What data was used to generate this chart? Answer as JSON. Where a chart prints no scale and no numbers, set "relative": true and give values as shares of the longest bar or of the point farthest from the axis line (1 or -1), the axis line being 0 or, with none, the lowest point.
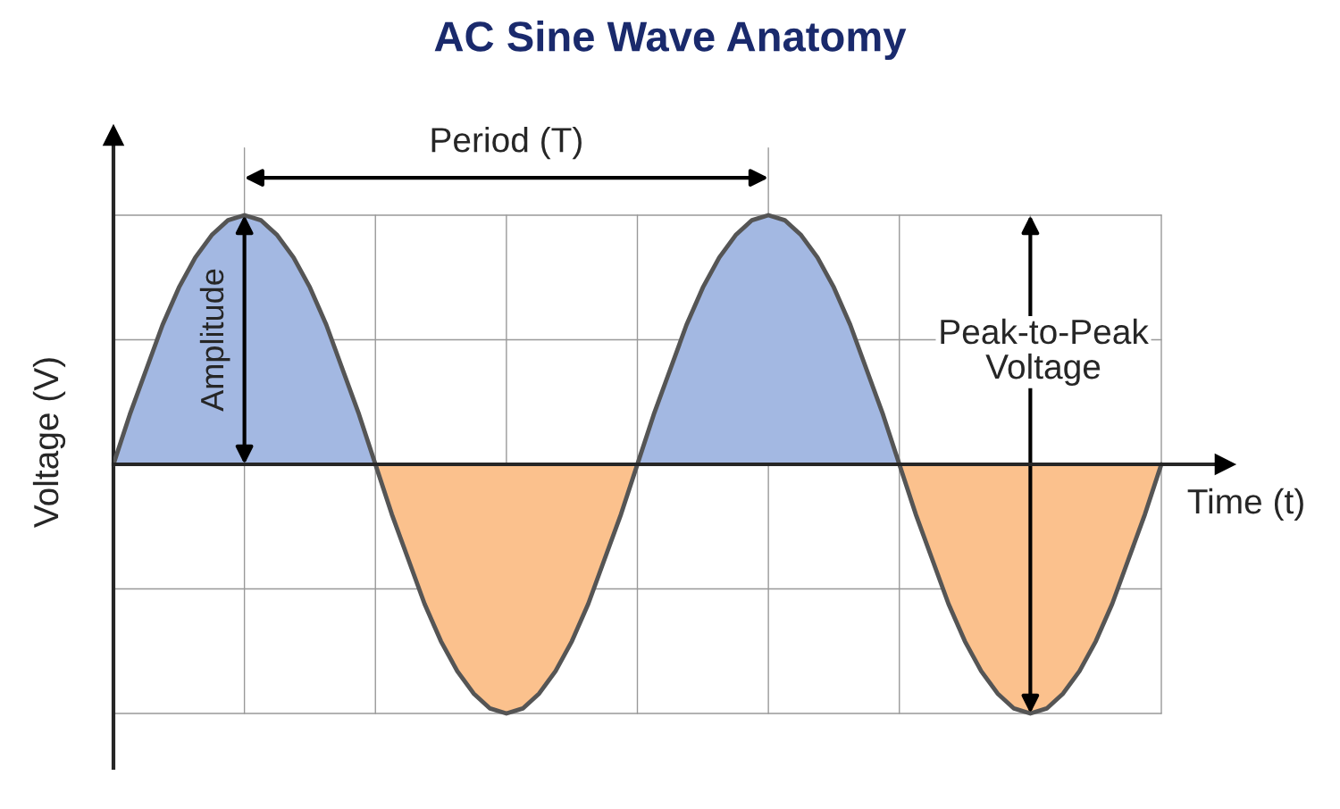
{
  "chart_data": {
    "type": "area",
    "title": "AC Sine Wave Anatomy",
    "xlabel": "Time (t)",
    "ylabel": "Voltage (V)",
    "relative": true,
    "grid": true,
    "categories": [
      null,
      null,
      null,
      null,
      null,
      null,
      null,
      null,
      null,
      null,
      null,
      null,
      null,
      null,
      null,
      null,
      null,
      null,
      null,
      null,
      null,
      null,
      null,
      null,
      null,
      null,
      null,
      null,
      null,
      null,
      null,
      null,
      null,
      null,
      null,
      null,
      null,
      null,
      null,
      null,
      null,
      null,
      null,
      null,
      null,
      null,
      null,
      null,
      null,
      null,
      null,
      null,
      null,
      null,
      null,
      null,
      null,
      null,
      null,
      null,
      null,
      null,
      null,
      null,
      null
    ],
    "series": [
      {
        "color": "#a3b8e2",
        "values": [
          0,
          0.2,
          0.38,
          0.56,
          0.71,
          0.83,
          0.92,
          0.98,
          1,
          0.98,
          0.92,
          0.83,
          0.71,
          0.56,
          0.38,
          0.2,
          0,
          null,
          null,
          null,
          null,
          null,
          null,
          null,
          null,
          null,
          null,
          null,
          null,
          null,
          null,
          null,
          0,
          0.2,
          0.38,
          0.56,
          0.71,
          0.83,
          0.92,
          0.98,
          1,
          0.98,
          0.92,
          0.83,
          0.71,
          0.56,
          0.38,
          0.2,
          0,
          null,
          null,
          null,
          null,
          null,
          null,
          null,
          null,
          null,
          null,
          null,
          null,
          null,
          null,
          null,
          null
        ]
      },
      {
        "color": "#fbc18d",
        "values": [
          null,
          null,
          null,
          null,
          null,
          null,
          null,
          null,
          null,
          null,
          null,
          null,
          null,
          null,
          null,
          null,
          0,
          -0.2,
          -0.38,
          -0.56,
          -0.71,
          -0.83,
          -0.92,
          -0.98,
          -1,
          -0.98,
          -0.92,
          -0.83,
          -0.71,
          -0.56,
          -0.38,
          -0.2,
          0,
          null,
          null,
          null,
          null,
          null,
          null,
          null,
          null,
          null,
          null,
          null,
          null,
          null,
          null,
          null,
          0,
          -0.2,
          -0.38,
          -0.56,
          -0.71,
          -0.83,
          -0.92,
          -0.98,
          -1,
          -0.98,
          -0.92,
          -0.83,
          -0.71,
          -0.56,
          -0.38,
          -0.2,
          0
        ]
      },
      {
        "type": "line",
        "color": "#555555",
        "values": [
          0,
          0.2,
          0.38,
          0.56,
          0.71,
          0.83,
          0.92,
          0.98,
          1,
          0.98,
          0.92,
          0.83,
          0.71,
          0.56,
          0.38,
          0.2,
          0,
          -0.2,
          -0.38,
          -0.56,
          -0.71,
          -0.83,
          -0.92,
          -0.98,
          -1,
          -0.98,
          -0.92,
          -0.83,
          -0.71,
          -0.56,
          -0.38,
          -0.2,
          0,
          0.2,
          0.38,
          0.56,
          0.71,
          0.83,
          0.92,
          0.98,
          1,
          0.98,
          0.92,
          0.83,
          0.71,
          0.56,
          0.38,
          0.2,
          0,
          -0.2,
          -0.38,
          -0.56,
          -0.71,
          -0.83,
          -0.92,
          -0.98,
          -1,
          -0.98,
          -0.92,
          -0.83,
          -0.71,
          -0.56,
          -0.38,
          -0.2,
          0
        ]
      }
    ],
    "annotations": [
      "Period (T)",
      "Amplitude",
      "Peak-to-Peak\nVoltage"
    ]
  }
}
